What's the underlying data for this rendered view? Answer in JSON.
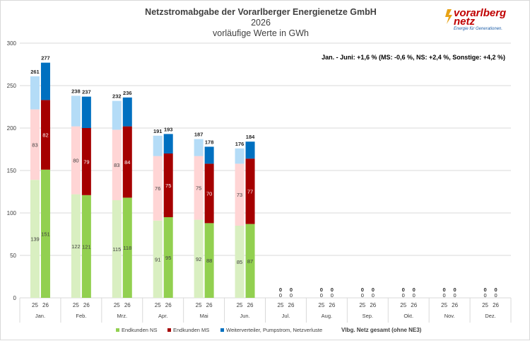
{
  "title": "Netzstromabgabe der Vorarlberger Energienetze GmbH",
  "subtitle_year": "2026",
  "subtitle_unit": "vorläufige Werte in GWh",
  "annotation": "Jan. - Juni: +1,6 % (MS: -0,6 %, NS: +2,4 %, Sonstige: +4,2 %)",
  "logo": {
    "line1": "vorarlberg",
    "line2": "netz",
    "tagline": "Energie für Generationen."
  },
  "legend": {
    "ns": "Endkunden NS",
    "ms": "Endkunden MS",
    "other": "Weiterverteiler, Pumpstrom, Netzverluste",
    "total": "Vlbg. Netz gesamt (ohne NE3)"
  },
  "colors": {
    "ns_25": "#d9efc1",
    "ns_26": "#92d050",
    "ms_25": "#ffd5d5",
    "ms_26": "#a50000",
    "other_25": "#b4dcf7",
    "other_26": "#0070c0",
    "grid": "#d9d9d9"
  },
  "chart_data": {
    "type": "bar",
    "stacked": true,
    "ylim": [
      0,
      300
    ],
    "yticks": [
      0,
      50,
      100,
      150,
      200,
      250,
      300
    ],
    "year_labels": [
      "25",
      "26"
    ],
    "categories": [
      "Jan.",
      "Feb.",
      "Mrz.",
      "Apr.",
      "Mai",
      "Jun.",
      "Jul.",
      "Aug.",
      "Sep.",
      "Okt.",
      "Nov.",
      "Dez."
    ],
    "ns": {
      "y2025": [
        139,
        122,
        115,
        91,
        92,
        85,
        null,
        null,
        null,
        null,
        null,
        null
      ],
      "y2026": [
        151,
        121,
        118,
        95,
        88,
        87,
        null,
        null,
        null,
        null,
        null,
        null
      ]
    },
    "ms": {
      "y2025": [
        83,
        80,
        83,
        76,
        75,
        73,
        null,
        null,
        null,
        null,
        null,
        null
      ],
      "y2026": [
        82,
        79,
        84,
        75,
        70,
        77,
        null,
        null,
        null,
        null,
        null,
        null
      ]
    },
    "other": {
      "y2025": [
        39,
        36,
        34,
        24,
        20,
        18,
        null,
        null,
        null,
        null,
        null,
        null
      ],
      "y2026": [
        44,
        37,
        34,
        23,
        20,
        20,
        null,
        null,
        null,
        null,
        null,
        null
      ]
    },
    "totals": {
      "y2025": [
        261,
        238,
        232,
        191,
        187,
        176,
        0,
        0,
        0,
        0,
        0,
        0
      ],
      "y2026": [
        277,
        237,
        236,
        193,
        178,
        184,
        0,
        0,
        0,
        0,
        0,
        0
      ]
    }
  }
}
